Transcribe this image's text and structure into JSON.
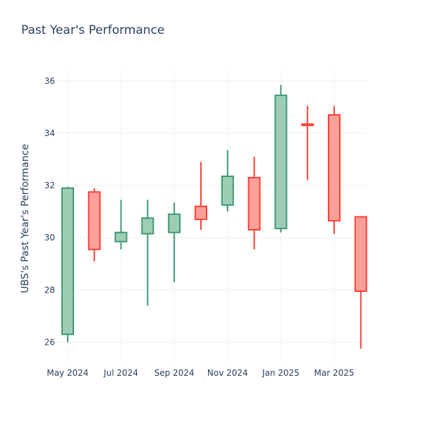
{
  "chart_data": {
    "type": "candlestick",
    "title": "Past Year's Performance",
    "xlabel": "",
    "ylabel": "UBS's Past Year's Performance",
    "ylim": [
      25.2,
      36.4
    ],
    "yticks": [
      26,
      28,
      30,
      32,
      34,
      36
    ],
    "xticks": [
      "May 2024",
      "Jul 2024",
      "Sep 2024",
      "Nov 2024",
      "Jan 2025",
      "Mar 2025"
    ],
    "grid": true,
    "increasing_color": "#3d9970",
    "increasing_fill": "#9ecdb6",
    "decreasing_color": "#ff4136",
    "decreasing_fill": "#ff9f9a",
    "candles": [
      {
        "open": 26.3,
        "high": 31.95,
        "low": 26.0,
        "close": 31.9
      },
      {
        "open": 31.75,
        "high": 31.9,
        "low": 29.1,
        "close": 29.55
      },
      {
        "open": 29.85,
        "high": 31.45,
        "low": 29.55,
        "close": 30.2
      },
      {
        "open": 30.15,
        "high": 31.45,
        "low": 27.4,
        "close": 30.75
      },
      {
        "open": 30.2,
        "high": 31.35,
        "low": 28.3,
        "close": 30.9
      },
      {
        "open": 31.2,
        "high": 32.9,
        "low": 30.3,
        "close": 30.7
      },
      {
        "open": 31.25,
        "high": 33.35,
        "low": 31.0,
        "close": 32.35
      },
      {
        "open": 32.3,
        "high": 33.1,
        "low": 29.55,
        "close": 30.3
      },
      {
        "open": 30.35,
        "high": 35.85,
        "low": 30.2,
        "close": 35.45
      },
      {
        "open": 34.35,
        "high": 35.05,
        "low": 32.2,
        "close": 34.3
      },
      {
        "open": 34.7,
        "high": 35.05,
        "low": 30.15,
        "close": 30.65
      },
      {
        "open": 30.8,
        "high": 30.8,
        "low": 25.75,
        "close": 27.95
      }
    ]
  }
}
